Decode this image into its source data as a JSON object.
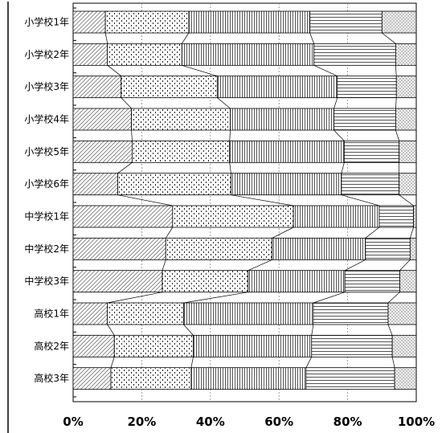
{
  "chart_data": {
    "type": "bar",
    "orientation": "horizontal",
    "stacked": true,
    "percent": true,
    "title": "",
    "xlabel": "",
    "ylabel": "",
    "xlim": [
      0,
      100
    ],
    "x_ticks": [
      "0%",
      "20%",
      "40%",
      "60%",
      "80%",
      "100%"
    ],
    "grid": "vertical dotted",
    "legend": "none",
    "categories": [
      "小学校1年",
      "小学校2年",
      "小学校3年",
      "小学校4年",
      "小学校5年",
      "小学校6年",
      "中学校1年",
      "中学校2年",
      "中学校3年",
      "高校1年",
      "高校2年",
      "高校3年"
    ],
    "series": [
      {
        "pattern": "diagonal-hatch",
        "values": [
          9.4,
          10.0,
          14.0,
          17.0,
          17.2,
          13.0,
          29.0,
          27.0,
          26.0,
          10.0,
          12.0,
          11.0
        ]
      },
      {
        "pattern": "dots",
        "values": [
          24.3,
          21.7,
          28.0,
          28.8,
          28.4,
          33.0,
          35.2,
          31.0,
          25.0,
          22.2,
          23.0,
          23.4
        ]
      },
      {
        "pattern": "vertical-lines",
        "values": [
          35.3,
          38.5,
          35.0,
          30.2,
          33.4,
          32.2,
          25.0,
          27.2,
          28.2,
          37.8,
          34.5,
          33.5
        ]
      },
      {
        "pattern": "horizontal-lines",
        "values": [
          21.0,
          23.8,
          17.2,
          18.0,
          16.0,
          16.8,
          10.0,
          13.0,
          16.0,
          21.8,
          23.5,
          25.8
        ]
      },
      {
        "pattern": "crosshatch",
        "values": [
          10.0,
          6.0,
          5.8,
          6.0,
          5.0,
          5.0,
          0.8,
          1.8,
          4.8,
          8.2,
          7.0,
          6.3
        ]
      }
    ]
  }
}
